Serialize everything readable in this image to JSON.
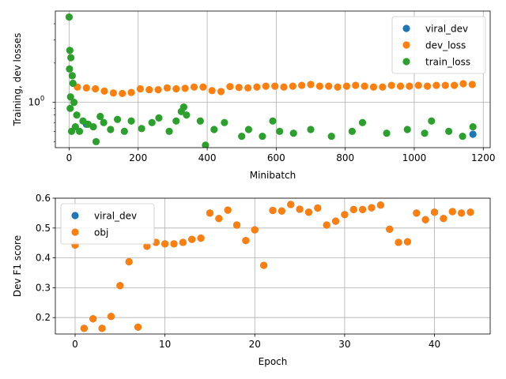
{
  "colors": {
    "blue": "#1f77b4",
    "orange": "#ff7f0e",
    "green": "#2ca02c",
    "grid": "#b0b0b0"
  },
  "chart_data": [
    {
      "type": "scatter",
      "xlabel": "Minibatch",
      "ylabel": "Training, dev losses",
      "yscale": "log",
      "xlim": [
        -40,
        1220
      ],
      "ylim": [
        0.45,
        5.0
      ],
      "xticks": [
        0,
        200,
        400,
        600,
        800,
        1000,
        1200
      ],
      "yticks": [
        1.0
      ],
      "ytick_labels": [
        "10^0"
      ],
      "grid": true,
      "legend": "top-right",
      "series": [
        {
          "name": "viral_dev",
          "color": "#1f77b4",
          "x": [
            50,
            1170
          ],
          "y": [
            0.68,
            0.57
          ]
        },
        {
          "name": "dev_loss",
          "color": "#ff7f0e",
          "x": [
            24,
            50,
            76,
            102,
            128,
            154,
            180,
            206,
            232,
            258,
            284,
            310,
            336,
            362,
            388,
            414,
            440,
            466,
            492,
            518,
            544,
            570,
            596,
            622,
            648,
            674,
            700,
            726,
            752,
            778,
            804,
            830,
            856,
            882,
            908,
            934,
            960,
            986,
            1012,
            1038,
            1064,
            1090,
            1116,
            1142,
            1168
          ],
          "y": [
            1.31,
            1.29,
            1.27,
            1.22,
            1.18,
            1.17,
            1.19,
            1.27,
            1.25,
            1.25,
            1.29,
            1.27,
            1.28,
            1.31,
            1.31,
            1.23,
            1.21,
            1.32,
            1.3,
            1.29,
            1.31,
            1.33,
            1.33,
            1.31,
            1.33,
            1.35,
            1.37,
            1.33,
            1.33,
            1.31,
            1.33,
            1.35,
            1.33,
            1.31,
            1.31,
            1.35,
            1.33,
            1.33,
            1.35,
            1.33,
            1.35,
            1.35,
            1.35,
            1.39,
            1.37
          ]
        },
        {
          "name": "train_loss",
          "color": "#2ca02c",
          "x": [
            0,
            1,
            2,
            3,
            4,
            5,
            7,
            9,
            11,
            14,
            18,
            22,
            30,
            40,
            55,
            70,
            78,
            90,
            100,
            120,
            140,
            160,
            180,
            210,
            240,
            260,
            290,
            310,
            325,
            332,
            340,
            380,
            395,
            420,
            450,
            500,
            520,
            560,
            590,
            610,
            650,
            700,
            760,
            820,
            850,
            920,
            980,
            1030,
            1050,
            1100,
            1140,
            1170
          ],
          "y": [
            4.5,
            1.8,
            2.5,
            0.9,
            1.1,
            2.2,
            0.6,
            1.6,
            1.4,
            1.0,
            0.65,
            0.8,
            0.6,
            0.72,
            0.68,
            0.65,
            0.5,
            0.78,
            0.7,
            0.62,
            0.74,
            0.6,
            0.72,
            0.63,
            0.7,
            0.76,
            0.6,
            0.72,
            0.85,
            0.92,
            0.8,
            0.72,
            0.47,
            0.62,
            0.7,
            0.55,
            0.62,
            0.55,
            0.72,
            0.6,
            0.58,
            0.62,
            0.55,
            0.6,
            0.7,
            0.58,
            0.62,
            0.58,
            0.72,
            0.6,
            0.55,
            0.65
          ]
        }
      ]
    },
    {
      "type": "scatter",
      "xlabel": "Epoch",
      "ylabel": "Dev F1 score",
      "xlim": [
        -2.2,
        46.2
      ],
      "ylim": [
        0.145,
        0.6
      ],
      "xticks": [
        0,
        10,
        20,
        30,
        40
      ],
      "yticks": [
        0.2,
        0.3,
        0.4,
        0.5,
        0.6
      ],
      "grid": true,
      "legend": "top-left",
      "series": [
        {
          "name": "viral_dev",
          "color": "#1f77b4",
          "x": [
            0,
            1,
            2,
            3,
            4,
            5,
            6,
            7,
            8,
            9,
            10,
            11,
            12,
            13,
            14,
            15,
            16,
            17,
            18,
            19,
            20,
            21,
            22,
            23,
            24,
            25,
            26,
            27,
            28,
            29,
            30,
            31,
            32,
            33,
            34,
            35,
            36,
            37,
            38,
            39,
            40,
            41,
            42,
            43,
            44
          ],
          "y": [
            0.443,
            0.164,
            0.196,
            0.164,
            0.204,
            0.307,
            0.387,
            0.168,
            0.439,
            0.452,
            0.447,
            0.447,
            0.452,
            0.462,
            0.466,
            0.55,
            0.532,
            0.56,
            0.51,
            0.458,
            0.494,
            0.375,
            0.559,
            0.557,
            0.579,
            0.563,
            0.553,
            0.567,
            0.51,
            0.523,
            0.545,
            0.562,
            0.562,
            0.568,
            0.577,
            0.496,
            0.452,
            0.454,
            0.55,
            0.528,
            0.553,
            0.532,
            0.555,
            0.55,
            0.553
          ]
        },
        {
          "name": "obj",
          "color": "#ff7f0e",
          "x": [
            0,
            1,
            2,
            3,
            4,
            5,
            6,
            7,
            8,
            9,
            10,
            11,
            12,
            13,
            14,
            15,
            16,
            17,
            18,
            19,
            20,
            21,
            22,
            23,
            24,
            25,
            26,
            27,
            28,
            29,
            30,
            31,
            32,
            33,
            34,
            35,
            36,
            37,
            38,
            39,
            40,
            41,
            42,
            43,
            44
          ],
          "y": [
            0.443,
            0.164,
            0.196,
            0.164,
            0.204,
            0.307,
            0.387,
            0.168,
            0.439,
            0.452,
            0.447,
            0.447,
            0.452,
            0.462,
            0.466,
            0.55,
            0.532,
            0.56,
            0.51,
            0.458,
            0.494,
            0.375,
            0.559,
            0.557,
            0.579,
            0.563,
            0.553,
            0.567,
            0.51,
            0.523,
            0.545,
            0.562,
            0.562,
            0.568,
            0.577,
            0.496,
            0.452,
            0.454,
            0.55,
            0.528,
            0.553,
            0.532,
            0.555,
            0.55,
            0.553
          ]
        }
      ]
    }
  ]
}
